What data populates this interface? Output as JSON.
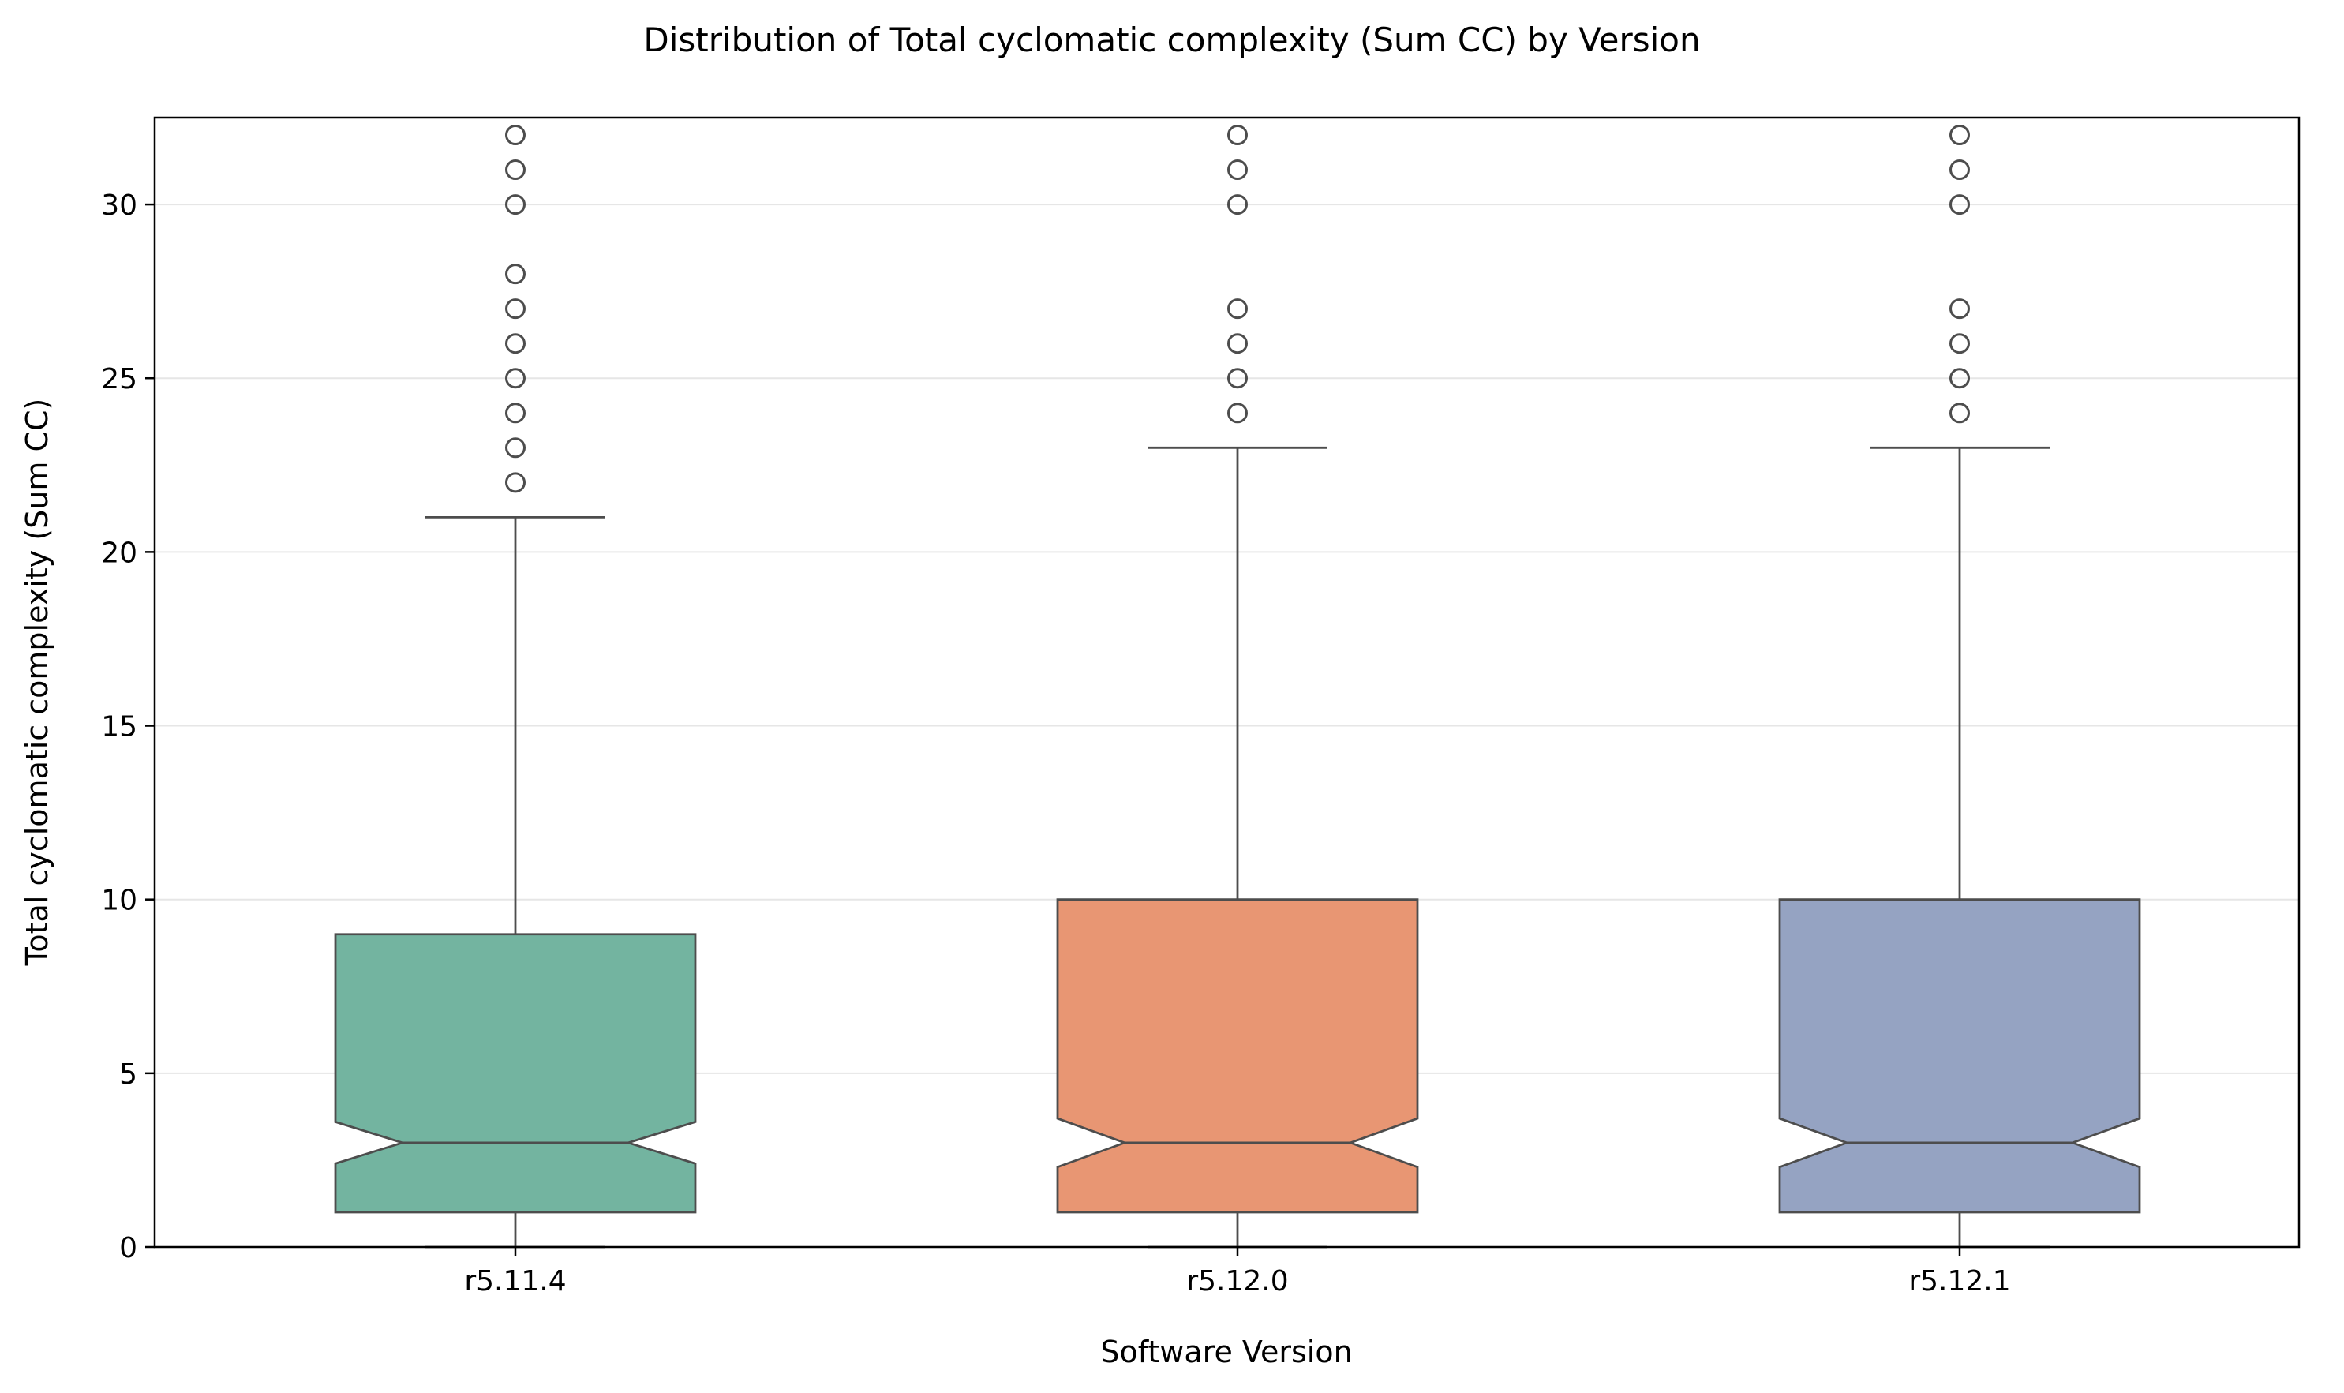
{
  "chart_data": {
    "type": "box",
    "title": "Distribution of Total cyclomatic complexity (Sum CC) by Version",
    "xlabel": "Software Version",
    "ylabel": "Total cyclomatic complexity (Sum CC)",
    "ylim": [
      0,
      32.5
    ],
    "yticks": [
      0,
      5,
      10,
      15,
      20,
      25,
      30
    ],
    "grid": "horizontal",
    "notched": true,
    "categories": [
      "r5.11.4",
      "r5.12.0",
      "r5.12.1"
    ],
    "boxes": [
      {
        "name": "r5.11.4",
        "color": "#73b4a0",
        "whisker_low": 0,
        "q1": 1,
        "median": 3,
        "q3": 9,
        "whisker_high": 21,
        "notch_low": 2.4,
        "notch_high": 3.6,
        "outliers": [
          22,
          23,
          24,
          25,
          26,
          27,
          28,
          30,
          31,
          32
        ]
      },
      {
        "name": "r5.12.0",
        "color": "#e89673",
        "whisker_low": 0,
        "q1": 1,
        "median": 3,
        "q3": 10,
        "whisker_high": 23,
        "notch_low": 2.3,
        "notch_high": 3.7,
        "outliers": [
          24,
          25,
          26,
          27,
          30,
          31,
          32
        ]
      },
      {
        "name": "r5.12.1",
        "color": "#95a3c2",
        "whisker_low": 0,
        "q1": 1,
        "median": 3,
        "q3": 10,
        "whisker_high": 23,
        "notch_low": 2.3,
        "notch_high": 3.7,
        "outliers": [
          24,
          25,
          26,
          27,
          30,
          31,
          32
        ]
      }
    ]
  }
}
